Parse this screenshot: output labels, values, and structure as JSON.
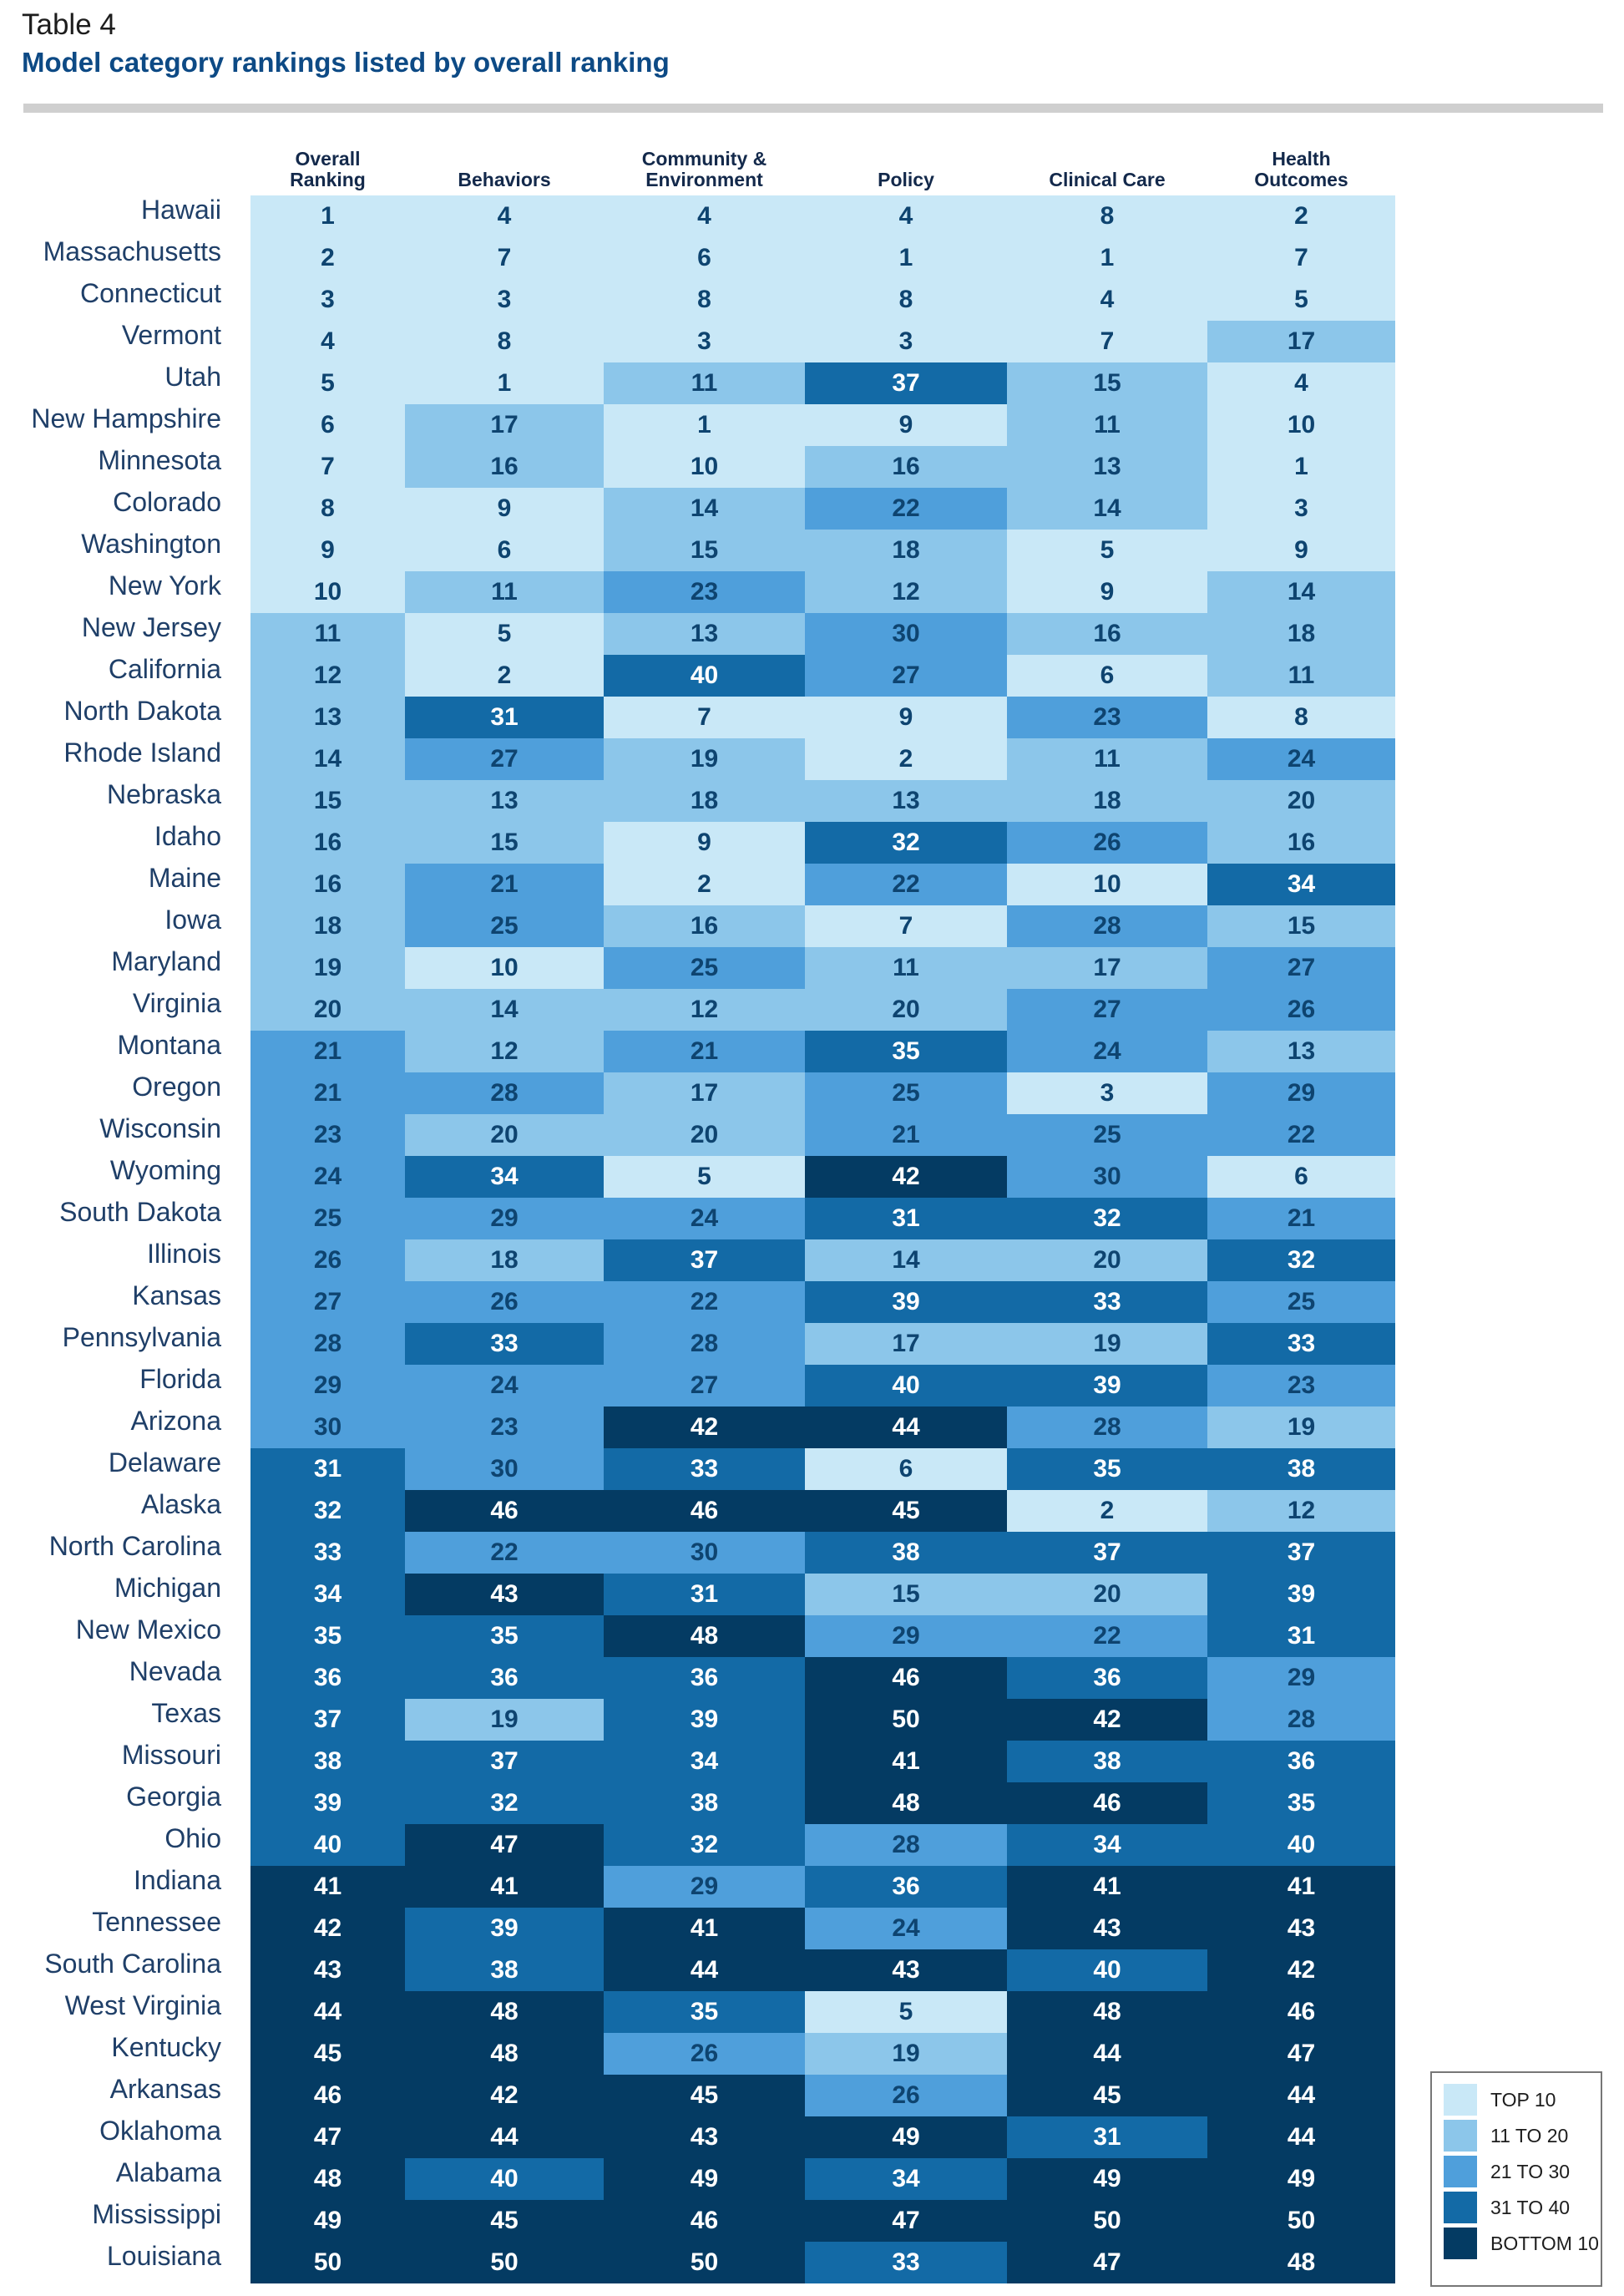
{
  "header": {
    "label": "Table 4",
    "title": "Model category rankings listed by overall ranking"
  },
  "palette": {
    "top10": "#c9e8f7",
    "r11_20": "#8cc6ea",
    "r21_30": "#4f9fdb",
    "r31_40": "#136aa6",
    "bottom10": "#043b63",
    "text_dark": "#0e4470",
    "text_light": "#ffffff"
  },
  "legend": [
    {
      "label": "TOP 10",
      "icon": "swatch-top-10"
    },
    {
      "label": "11 TO 20",
      "icon": "swatch-11-to-20"
    },
    {
      "label": "21 TO 30",
      "icon": "swatch-21-to-30"
    },
    {
      "label": "31 TO 40",
      "icon": "swatch-31-to-40"
    },
    {
      "label": "BOTTOM 10",
      "icon": "swatch-bottom-10"
    }
  ],
  "chart_data": {
    "type": "table",
    "title": "Model category rankings listed by overall ranking",
    "columns": [
      "Overall\nRanking",
      "Behaviors",
      "Community &\nEnvironment",
      "Policy",
      "Clinical Care",
      "Health\nOutcomes"
    ],
    "rows": [
      {
        "state": "Hawaii",
        "values": [
          1,
          4,
          4,
          4,
          8,
          2
        ]
      },
      {
        "state": "Massachusetts",
        "values": [
          2,
          7,
          6,
          1,
          1,
          7
        ]
      },
      {
        "state": "Connecticut",
        "values": [
          3,
          3,
          8,
          8,
          4,
          5
        ]
      },
      {
        "state": "Vermont",
        "values": [
          4,
          8,
          3,
          3,
          7,
          17
        ]
      },
      {
        "state": "Utah",
        "values": [
          5,
          1,
          11,
          37,
          15,
          4
        ]
      },
      {
        "state": "New Hampshire",
        "values": [
          6,
          17,
          1,
          9,
          11,
          10
        ]
      },
      {
        "state": "Minnesota",
        "values": [
          7,
          16,
          10,
          16,
          13,
          1
        ]
      },
      {
        "state": "Colorado",
        "values": [
          8,
          9,
          14,
          22,
          14,
          3
        ]
      },
      {
        "state": "Washington",
        "values": [
          9,
          6,
          15,
          18,
          5,
          9
        ]
      },
      {
        "state": "New York",
        "values": [
          10,
          11,
          23,
          12,
          9,
          14
        ]
      },
      {
        "state": "New Jersey",
        "values": [
          11,
          5,
          13,
          30,
          16,
          18
        ]
      },
      {
        "state": "California",
        "values": [
          12,
          2,
          40,
          27,
          6,
          11
        ]
      },
      {
        "state": "North Dakota",
        "values": [
          13,
          31,
          7,
          9,
          23,
          8
        ]
      },
      {
        "state": "Rhode Island",
        "values": [
          14,
          27,
          19,
          2,
          11,
          24
        ]
      },
      {
        "state": "Nebraska",
        "values": [
          15,
          13,
          18,
          13,
          18,
          20
        ]
      },
      {
        "state": "Idaho",
        "values": [
          16,
          15,
          9,
          32,
          26,
          16
        ]
      },
      {
        "state": "Maine",
        "values": [
          16,
          21,
          2,
          22,
          10,
          34
        ]
      },
      {
        "state": "Iowa",
        "values": [
          18,
          25,
          16,
          7,
          28,
          15
        ]
      },
      {
        "state": "Maryland",
        "values": [
          19,
          10,
          25,
          11,
          17,
          27
        ]
      },
      {
        "state": "Virginia",
        "values": [
          20,
          14,
          12,
          20,
          27,
          26
        ]
      },
      {
        "state": "Montana",
        "values": [
          21,
          12,
          21,
          35,
          24,
          13
        ]
      },
      {
        "state": "Oregon",
        "values": [
          21,
          28,
          17,
          25,
          3,
          29
        ]
      },
      {
        "state": "Wisconsin",
        "values": [
          23,
          20,
          20,
          21,
          25,
          22
        ]
      },
      {
        "state": "Wyoming",
        "values": [
          24,
          34,
          5,
          42,
          30,
          6
        ]
      },
      {
        "state": "South Dakota",
        "values": [
          25,
          29,
          24,
          31,
          32,
          21
        ]
      },
      {
        "state": "Illinois",
        "values": [
          26,
          18,
          37,
          14,
          20,
          32
        ]
      },
      {
        "state": "Kansas",
        "values": [
          27,
          26,
          22,
          39,
          33,
          25
        ]
      },
      {
        "state": "Pennsylvania",
        "values": [
          28,
          33,
          28,
          17,
          19,
          33
        ]
      },
      {
        "state": "Florida",
        "values": [
          29,
          24,
          27,
          40,
          39,
          23
        ]
      },
      {
        "state": "Arizona",
        "values": [
          30,
          23,
          42,
          44,
          28,
          19
        ]
      },
      {
        "state": "Delaware",
        "values": [
          31,
          30,
          33,
          6,
          35,
          38
        ]
      },
      {
        "state": "Alaska",
        "values": [
          32,
          46,
          46,
          45,
          2,
          12
        ]
      },
      {
        "state": "North Carolina",
        "values": [
          33,
          22,
          30,
          38,
          37,
          37
        ]
      },
      {
        "state": "Michigan",
        "values": [
          34,
          43,
          31,
          15,
          20,
          39
        ]
      },
      {
        "state": "New Mexico",
        "values": [
          35,
          35,
          48,
          29,
          22,
          31
        ]
      },
      {
        "state": "Nevada",
        "values": [
          36,
          36,
          36,
          46,
          36,
          29
        ]
      },
      {
        "state": "Texas",
        "values": [
          37,
          19,
          39,
          50,
          42,
          28
        ]
      },
      {
        "state": "Missouri",
        "values": [
          38,
          37,
          34,
          41,
          38,
          36
        ]
      },
      {
        "state": "Georgia",
        "values": [
          39,
          32,
          38,
          48,
          46,
          35
        ]
      },
      {
        "state": "Ohio",
        "values": [
          40,
          47,
          32,
          28,
          34,
          40
        ]
      },
      {
        "state": "Indiana",
        "values": [
          41,
          41,
          29,
          36,
          41,
          41
        ]
      },
      {
        "state": "Tennessee",
        "values": [
          42,
          39,
          41,
          24,
          43,
          43
        ]
      },
      {
        "state": "South Carolina",
        "values": [
          43,
          38,
          44,
          43,
          40,
          42
        ]
      },
      {
        "state": "West Virginia",
        "values": [
          44,
          48,
          35,
          5,
          48,
          46
        ]
      },
      {
        "state": "Kentucky",
        "values": [
          45,
          48,
          26,
          19,
          44,
          47
        ]
      },
      {
        "state": "Arkansas",
        "values": [
          46,
          42,
          45,
          26,
          45,
          44
        ]
      },
      {
        "state": "Oklahoma",
        "values": [
          47,
          44,
          43,
          49,
          31,
          44
        ]
      },
      {
        "state": "Alabama",
        "values": [
          48,
          40,
          49,
          34,
          49,
          49
        ]
      },
      {
        "state": "Mississippi",
        "values": [
          49,
          45,
          46,
          47,
          50,
          50
        ]
      },
      {
        "state": "Louisiana",
        "values": [
          50,
          50,
          50,
          33,
          47,
          48
        ]
      }
    ],
    "color_bins": [
      {
        "label": "TOP 10",
        "range": [
          1,
          10
        ]
      },
      {
        "label": "11 TO 20",
        "range": [
          11,
          20
        ]
      },
      {
        "label": "21 TO 30",
        "range": [
          21,
          30
        ]
      },
      {
        "label": "31 TO 40",
        "range": [
          31,
          40
        ]
      },
      {
        "label": "BOTTOM 10",
        "range": [
          41,
          50
        ]
      }
    ]
  }
}
